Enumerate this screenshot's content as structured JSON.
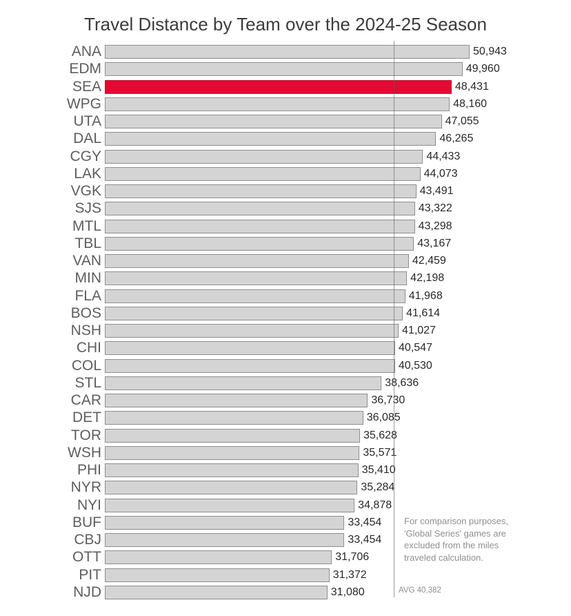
{
  "title": "Travel Distance by Team over the 2024-25 Season",
  "chart_data": {
    "type": "bar",
    "orientation": "horizontal",
    "title": "Travel Distance by Team over the 2024-25 Season",
    "categories": [
      "ANA",
      "EDM",
      "SEA",
      "WPG",
      "UTA",
      "DAL",
      "CGY",
      "LAK",
      "VGK",
      "SJS",
      "MTL",
      "TBL",
      "VAN",
      "MIN",
      "FLA",
      "BOS",
      "NSH",
      "CHI",
      "COL",
      "STL",
      "CAR",
      "DET",
      "TOR",
      "WSH",
      "PHI",
      "NYR",
      "NYI",
      "BUF",
      "CBJ",
      "OTT",
      "PIT",
      "NJD"
    ],
    "values": [
      50943,
      49960,
      48431,
      48160,
      47055,
      46265,
      44433,
      44073,
      43491,
      43322,
      43298,
      43167,
      42459,
      42198,
      41968,
      41614,
      41027,
      40547,
      40530,
      38636,
      36730,
      36085,
      35628,
      35571,
      35410,
      35284,
      34878,
      33454,
      33454,
      31706,
      31372,
      31080
    ],
    "highlighted_category": "SEA",
    "average": {
      "value": 40382,
      "label": "AVG 40,382"
    },
    "xlim": [
      0,
      50943
    ],
    "grid": false,
    "legend": false,
    "annotation_lines": [
      "For comparison purposes,",
      "'Global Series' games are",
      "excluded from the miles",
      "traveled calculation."
    ],
    "colors": {
      "bar": "#d4d4d4",
      "bar_border": "#8e8e8e",
      "highlight": "#e20a33",
      "highlight_border": "#bb1834",
      "avg_line": "#5c5c5c",
      "annotation_text": "#8f8f8f",
      "value_text": "#282828",
      "team_text": "#5e5e60",
      "title_text": "#3c3c3c"
    }
  }
}
